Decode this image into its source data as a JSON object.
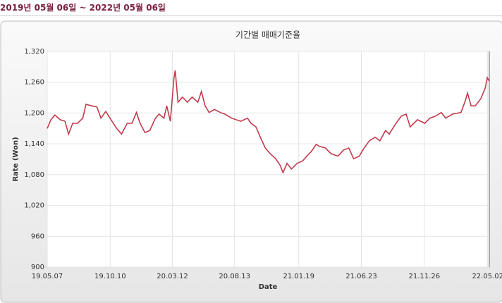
{
  "header": {
    "period": "2019년 05월 06일 ~ 2022년 05월 06일"
  },
  "chart_data": {
    "type": "line",
    "title": "기간별 매매기준율",
    "x_label": "Date",
    "y_label": "Rate (Won)",
    "x": [
      "19.05.07",
      "19.05.16",
      "19.05.26",
      "19.06.08",
      "19.06.20",
      "19.06.29",
      "19.07.09",
      "19.07.21",
      "19.08.03",
      "19.08.11",
      "19.08.25",
      "19.09.07",
      "19.09.17",
      "19.09.29",
      "19.10.12",
      "19.10.26",
      "19.11.07",
      "19.11.21",
      "19.12.03",
      "19.12.14",
      "19.12.23",
      "20.01.04",
      "20.01.16",
      "20.01.30",
      "20.02.08",
      "20.02.20",
      "20.02.27",
      "20.03.07",
      "20.03.16",
      "20.03.19",
      "20.03.26",
      "20.04.06",
      "20.04.18",
      "20.04.30",
      "20.05.14",
      "20.05.23",
      "20.06.01",
      "20.06.11",
      "20.06.24",
      "20.07.09",
      "20.07.20",
      "20.08.06",
      "20.08.28",
      "20.09.14",
      "20.09.23",
      "20.10.05",
      "20.10.16",
      "20.10.28",
      "20.11.09",
      "20.11.23",
      "20.12.04",
      "20.12.11",
      "20.12.21",
      "21.01.01",
      "21.01.15",
      "21.01.29",
      "21.02.10",
      "21.02.19",
      "21.03.03",
      "21.03.12",
      "21.03.26",
      "21.04.09",
      "21.04.26",
      "21.05.10",
      "21.05.23",
      "21.06.04",
      "21.06.18",
      "21.06.30",
      "21.07.13",
      "21.07.27",
      "21.08.08",
      "21.08.22",
      "21.08.31",
      "21.09.17",
      "21.09.30",
      "21.10.12",
      "21.10.22",
      "21.11.09",
      "21.11.27",
      "21.12.10",
      "21.12.24",
      "22.01.07",
      "22.01.18",
      "22.02.04",
      "22.02.25",
      "22.03.08",
      "22.03.13",
      "22.03.22",
      "22.04.01",
      "22.04.15",
      "22.04.26",
      "22.05.01",
      "22.05.06"
    ],
    "series": [
      {
        "name": "매매기준율",
        "color": "#c23b4c",
        "values": [
          1170,
          1187,
          1196,
          1187,
          1184,
          1159,
          1180,
          1180,
          1190,
          1217,
          1214,
          1212,
          1190,
          1203,
          1187,
          1170,
          1159,
          1180,
          1180,
          1201,
          1180,
          1162,
          1166,
          1190,
          1198,
          1190,
          1214,
          1184,
          1269,
          1283,
          1221,
          1231,
          1221,
          1231,
          1221,
          1242,
          1214,
          1201,
          1207,
          1201,
          1198,
          1190,
          1184,
          1190,
          1180,
          1173,
          1153,
          1132,
          1121,
          1111,
          1098,
          1084,
          1102,
          1091,
          1102,
          1107,
          1118,
          1125,
          1139,
          1135,
          1132,
          1121,
          1116,
          1128,
          1132,
          1111,
          1116,
          1132,
          1146,
          1153,
          1146,
          1166,
          1159,
          1180,
          1194,
          1198,
          1173,
          1187,
          1180,
          1190,
          1194,
          1201,
          1190,
          1198,
          1201,
          1225,
          1239,
          1214,
          1214,
          1228,
          1249,
          1269,
          1262
        ]
      }
    ],
    "xlim": [
      "19.05.07",
      "22.05.06"
    ],
    "xticks": [
      "19.05.07",
      "19.10.10",
      "20.03.12",
      "20.08.13",
      "21.01.19",
      "21.06.23",
      "21.11.26",
      "22.05.02"
    ],
    "ylim": [
      900,
      1320
    ],
    "yticks": [
      {
        "value": 900,
        "label": "900"
      },
      {
        "value": 960,
        "label": "960"
      },
      {
        "value": 1020,
        "label": "1,020"
      },
      {
        "value": 1080,
        "label": "1,080"
      },
      {
        "value": 1140,
        "label": "1,140"
      },
      {
        "value": 1200,
        "label": "1,200"
      },
      {
        "value": 1260,
        "label": "1,260"
      },
      {
        "value": 1320,
        "label": "1,320"
      }
    ],
    "grid": true
  }
}
